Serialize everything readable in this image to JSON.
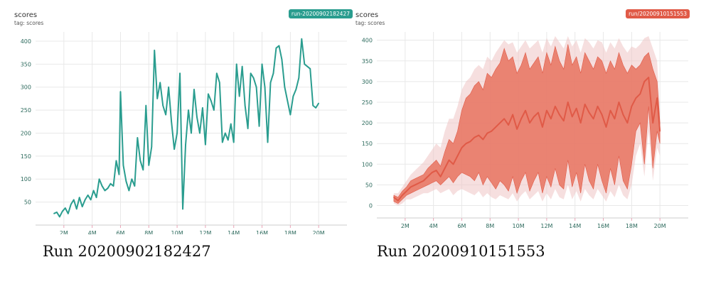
{
  "panels": [
    {
      "title": "scores",
      "tag": "tag: scores",
      "badge": "run-20200902182427",
      "caption": "Run 20200902182427"
    },
    {
      "title": "scores",
      "tag": "tag: scores",
      "badge": "run/20200910151553",
      "caption": "Run 20200910151553"
    }
  ],
  "chart_data": [
    {
      "type": "line",
      "title": "scores",
      "xlim": [
        0,
        22
      ],
      "ylim": [
        0,
        420
      ],
      "xticks": [
        2,
        4,
        6,
        8,
        10,
        12,
        14,
        16,
        18,
        20
      ],
      "xtick_labels": [
        "2M",
        "4M",
        "6M",
        "8M",
        "10M",
        "12M",
        "14M",
        "16M",
        "18M",
        "20M"
      ],
      "yticks": [
        50,
        100,
        150,
        200,
        250,
        300,
        350,
        400
      ],
      "ytick_labels": [
        "50",
        "100",
        "150",
        "200",
        "250",
        "300",
        "350",
        "400"
      ],
      "grid": true,
      "color": "#2a9d8f",
      "series": [
        {
          "x": [
            1.3,
            1.5,
            1.7,
            1.9,
            2.1,
            2.3,
            2.5,
            2.7,
            2.9,
            3.1,
            3.3,
            3.5,
            3.7,
            3.9,
            4.1,
            4.3,
            4.5,
            4.7,
            4.9,
            5.1,
            5.3,
            5.5,
            5.7,
            5.9,
            6.0,
            6.2,
            6.4,
            6.6,
            6.8,
            7.0,
            7.2,
            7.4,
            7.6,
            7.8,
            8.0,
            8.2,
            8.4,
            8.6,
            8.8,
            9.0,
            9.2,
            9.4,
            9.6,
            9.8,
            10.0,
            10.2,
            10.4,
            10.6,
            10.8,
            11.0,
            11.2,
            11.4,
            11.6,
            11.8,
            12.0,
            12.2,
            12.4,
            12.6,
            12.8,
            13.0,
            13.2,
            13.4,
            13.6,
            13.8,
            14.0,
            14.2,
            14.4,
            14.6,
            14.8,
            15.0,
            15.2,
            15.4,
            15.6,
            15.8,
            16.0,
            16.2,
            16.4,
            16.6,
            16.8,
            17.0,
            17.2,
            17.4,
            17.6,
            17.8,
            18.0,
            18.2,
            18.4,
            18.6,
            18.8,
            19.0,
            19.2,
            19.4,
            19.6,
            19.8,
            20.0
          ],
          "y": [
            25,
            28,
            18,
            30,
            37,
            25,
            45,
            55,
            35,
            60,
            40,
            55,
            65,
            55,
            75,
            60,
            100,
            85,
            75,
            80,
            90,
            85,
            140,
            110,
            290,
            130,
            95,
            75,
            100,
            85,
            190,
            140,
            120,
            260,
            130,
            170,
            380,
            275,
            310,
            260,
            240,
            300,
            225,
            165,
            200,
            330,
            35,
            175,
            250,
            200,
            295,
            235,
            200,
            255,
            175,
            285,
            270,
            250,
            330,
            310,
            180,
            200,
            185,
            220,
            180,
            350,
            280,
            345,
            260,
            210,
            330,
            320,
            300,
            215,
            350,
            300,
            180,
            310,
            330,
            385,
            390,
            360,
            300,
            270,
            240,
            280,
            295,
            320,
            405,
            350,
            345,
            340,
            260,
            255,
            265
          ]
        }
      ]
    },
    {
      "type": "area",
      "title": "scores",
      "xlim": [
        0,
        22
      ],
      "ylim": [
        -30,
        420
      ],
      "xticks": [
        2,
        4,
        6,
        8,
        10,
        12,
        14,
        16,
        18,
        20
      ],
      "xtick_labels": [
        "2M",
        "4M",
        "6M",
        "8M",
        "10M",
        "12M",
        "14M",
        "16M",
        "18M",
        "20M"
      ],
      "yticks": [
        0,
        50,
        100,
        150,
        200,
        250,
        300,
        350,
        400
      ],
      "ytick_labels": [
        "0",
        "50",
        "100",
        "150",
        "200",
        "250",
        "300",
        "350",
        "400"
      ],
      "grid": true,
      "color": "#e05a47",
      "band_color": "#e8735f",
      "outer_band_color": "#efc4c4",
      "series": [
        {
          "x": [
            1.2,
            1.5,
            1.8,
            2.1,
            2.4,
            2.7,
            3.0,
            3.3,
            3.6,
            3.9,
            4.2,
            4.5,
            4.8,
            5.1,
            5.4,
            5.7,
            6.0,
            6.3,
            6.6,
            6.9,
            7.2,
            7.5,
            7.8,
            8.1,
            8.4,
            8.7,
            9.0,
            9.3,
            9.6,
            9.9,
            10.2,
            10.5,
            10.8,
            11.1,
            11.4,
            11.7,
            12.0,
            12.3,
            12.6,
            12.9,
            13.2,
            13.5,
            13.8,
            14.1,
            14.4,
            14.7,
            15.0,
            15.3,
            15.6,
            15.9,
            16.2,
            16.5,
            16.8,
            17.1,
            17.4,
            17.7,
            18.0,
            18.3,
            18.6,
            18.9,
            19.2,
            19.5,
            19.8,
            20.0
          ],
          "y": [
            20,
            12,
            25,
            35,
            45,
            50,
            55,
            60,
            70,
            80,
            85,
            70,
            90,
            110,
            100,
            120,
            140,
            150,
            155,
            165,
            170,
            160,
            175,
            180,
            190,
            200,
            210,
            195,
            220,
            185,
            210,
            230,
            200,
            215,
            225,
            190,
            230,
            210,
            240,
            220,
            205,
            250,
            215,
            235,
            200,
            245,
            225,
            210,
            240,
            220,
            190,
            230,
            210,
            250,
            220,
            200,
            240,
            260,
            270,
            300,
            310,
            200,
            260,
            180
          ],
          "band_low": [
            10,
            5,
            15,
            25,
            30,
            35,
            40,
            45,
            50,
            55,
            60,
            50,
            60,
            70,
            55,
            70,
            80,
            75,
            70,
            60,
            80,
            50,
            70,
            55,
            40,
            60,
            50,
            35,
            70,
            30,
            60,
            80,
            35,
            60,
            80,
            30,
            70,
            45,
            90,
            50,
            40,
            110,
            45,
            80,
            30,
            100,
            60,
            40,
            100,
            60,
            30,
            90,
            50,
            120,
            60,
            40,
            100,
            180,
            200,
            100,
            240,
            90,
            180,
            150
          ],
          "band_high": [
            25,
            20,
            35,
            45,
            60,
            65,
            70,
            75,
            90,
            100,
            110,
            95,
            130,
            160,
            150,
            180,
            230,
            260,
            270,
            290,
            300,
            280,
            320,
            310,
            330,
            345,
            380,
            350,
            360,
            320,
            340,
            370,
            330,
            345,
            360,
            320,
            370,
            340,
            385,
            350,
            330,
            390,
            340,
            360,
            320,
            370,
            350,
            330,
            360,
            350,
            320,
            350,
            330,
            370,
            340,
            320,
            340,
            330,
            340,
            360,
            370,
            330,
            300,
            200
          ],
          "outer_low": [
            5,
            0,
            5,
            15,
            15,
            20,
            25,
            30,
            30,
            35,
            40,
            30,
            35,
            40,
            25,
            35,
            40,
            35,
            30,
            25,
            35,
            20,
            30,
            20,
            15,
            25,
            20,
            15,
            30,
            10,
            25,
            35,
            15,
            25,
            35,
            10,
            30,
            15,
            40,
            20,
            15,
            50,
            15,
            35,
            10,
            40,
            25,
            15,
            40,
            25,
            10,
            35,
            20,
            50,
            25,
            15,
            50,
            120,
            150,
            70,
            180,
            60,
            140,
            120
          ],
          "outer_high": [
            30,
            30,
            45,
            60,
            75,
            85,
            95,
            105,
            120,
            135,
            150,
            140,
            180,
            210,
            210,
            240,
            280,
            300,
            310,
            330,
            340,
            330,
            360,
            350,
            370,
            385,
            400,
            390,
            395,
            370,
            385,
            400,
            380,
            390,
            400,
            370,
            405,
            385,
            410,
            395,
            380,
            410,
            385,
            400,
            370,
            405,
            395,
            380,
            400,
            395,
            370,
            395,
            380,
            405,
            385,
            370,
            385,
            380,
            390,
            405,
            410,
            380,
            350,
            230
          ]
        }
      ]
    }
  ]
}
